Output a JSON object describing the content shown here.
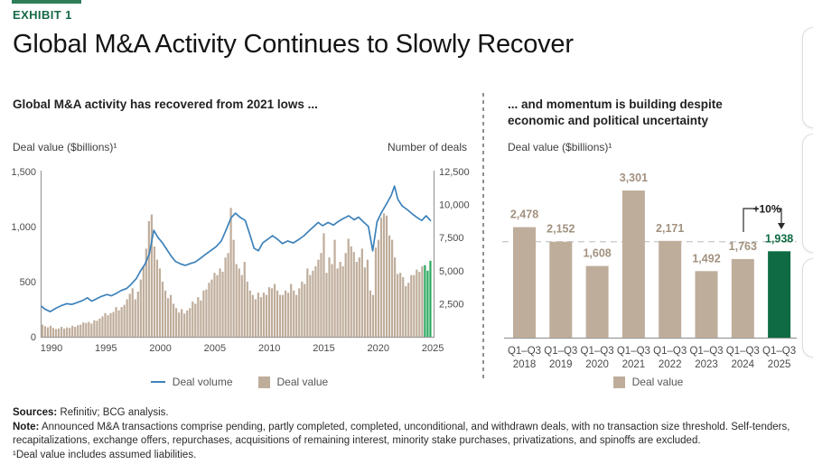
{
  "page": {
    "eyebrow": "EXHIBIT 1",
    "title": "Global M&A Activity Continues to Slowly Recover"
  },
  "colors": {
    "green_dark": "#0e6b43",
    "green_bright": "#29a95c",
    "tan_bar": "#bfad9b",
    "tan_label": "#a2917f",
    "line_blue": "#3d82ba",
    "axis_gray": "#9a9a9a",
    "tick_text": "#4a4a4a",
    "ref_dash": "#cccccc",
    "eyebrow_green": "#156a47"
  },
  "left_panel": {
    "heading": "Global M&A activity has recovered from 2021 lows ...",
    "y_left_caption": "Deal value ($billions)¹",
    "y_right_caption": "Number of deals",
    "legend": [
      {
        "label": "Deal volume",
        "swatch": "line"
      },
      {
        "label": "Deal value",
        "swatch": "square"
      }
    ]
  },
  "right_panel": {
    "heading1": "... and momentum is building despite",
    "heading2": "economic and political uncertainty",
    "y_caption": "Deal value ($billions)¹",
    "legend": [
      {
        "label": "Deal value",
        "swatch": "square"
      }
    ]
  },
  "footer": {
    "sources_label": "Sources:",
    "sources_text": " Refinitiv; BCG analysis.",
    "note_label": "Note:",
    "note_text": " Announced M&A transactions comprise pending, partly completed, completed, unconditional, and withdrawn deals, with no transaction size threshold. Self-tenders, recapitalizations, exchange offers, repurchases, acquisitions of remaining interest, minority stake purchases, privatizations, and spinoffs are excluded.",
    "footnote": "¹Deal value includes assumed liabilities."
  },
  "chart_data": [
    {
      "id": "global-ma-history",
      "type": "combo-bar-line",
      "title": "Global M&A activity has recovered from 2021 lows ...",
      "x_ticks": [
        1990,
        1995,
        2000,
        2005,
        2010,
        2015,
        2020,
        2025
      ],
      "y_left": {
        "label": "Deal value ($billions)¹",
        "tick_values": [
          0,
          500,
          1000,
          1500
        ],
        "ticks": [
          "0",
          "500",
          "1,000",
          "1,500"
        ],
        "range": [
          0,
          1500
        ]
      },
      "y_right": {
        "label": "Number of deals",
        "tick_values": [
          2500,
          5000,
          7500,
          10000,
          12500
        ],
        "ticks": [
          "2,500",
          "5,000",
          "7,500",
          "10,000",
          "12,500"
        ],
        "range": [
          0,
          12500
        ]
      },
      "bars": {
        "name": "Deal value",
        "unit": "$billions per quarter",
        "start_year": 1990,
        "period": "quarterly",
        "highlight_from_index": 140,
        "values": [
          110,
          95,
          85,
          100,
          80,
          70,
          75,
          90,
          75,
          85,
          80,
          100,
          90,
          105,
          110,
          130,
          125,
          135,
          120,
          150,
          145,
          165,
          185,
          215,
          195,
          215,
          225,
          270,
          240,
          270,
          290,
          340,
          390,
          440,
          340,
          410,
          520,
          640,
          800,
          1050,
          1110,
          820,
          700,
          620,
          500,
          420,
          350,
          380,
          300,
          260,
          220,
          250,
          210,
          240,
          260,
          320,
          300,
          360,
          330,
          420,
          430,
          490,
          520,
          580,
          560,
          620,
          590,
          720,
          760,
          1170,
          880,
          660,
          620,
          560,
          680,
          500,
          420,
          380,
          340,
          400,
          360,
          400,
          380,
          450,
          440,
          480,
          420,
          380,
          380,
          420,
          400,
          480,
          420,
          380,
          440,
          500,
          480,
          620,
          560,
          600,
          640,
          700,
          760,
          940,
          580,
          720,
          660,
          880,
          620,
          680,
          640,
          760,
          890,
          820,
          770,
          680,
          720,
          800,
          630,
          700,
          420,
          380,
          810,
          880,
          1080,
          1120,
          1100,
          920,
          880,
          720,
          570,
          580,
          540,
          460,
          490,
          560,
          560,
          610,
          590,
          640,
          650,
          600,
          690
        ]
      },
      "line": {
        "name": "Deal volume",
        "unit": "number of deals",
        "points": [
          [
            1990.0,
            2300
          ],
          [
            1990.3,
            2100
          ],
          [
            1990.8,
            1900
          ],
          [
            1991.3,
            2150
          ],
          [
            1991.8,
            2350
          ],
          [
            1992.3,
            2500
          ],
          [
            1992.8,
            2450
          ],
          [
            1993.3,
            2600
          ],
          [
            1993.8,
            2750
          ],
          [
            1994.2,
            2950
          ],
          [
            1994.6,
            2700
          ],
          [
            1995.0,
            2850
          ],
          [
            1995.5,
            3050
          ],
          [
            1996.0,
            3200
          ],
          [
            1996.4,
            3100
          ],
          [
            1996.9,
            3300
          ],
          [
            1997.3,
            3500
          ],
          [
            1997.8,
            3650
          ],
          [
            1998.2,
            3950
          ],
          [
            1998.7,
            4400
          ],
          [
            1999.1,
            5000
          ],
          [
            1999.5,
            5500
          ],
          [
            1999.9,
            6300
          ],
          [
            2000.3,
            8050
          ],
          [
            2000.7,
            7500
          ],
          [
            2001.1,
            7100
          ],
          [
            2001.5,
            6600
          ],
          [
            2001.9,
            6100
          ],
          [
            2002.3,
            5700
          ],
          [
            2002.8,
            5500
          ],
          [
            2003.2,
            5400
          ],
          [
            2003.7,
            5550
          ],
          [
            2004.1,
            5650
          ],
          [
            2004.6,
            5950
          ],
          [
            2005.0,
            6200
          ],
          [
            2005.5,
            6500
          ],
          [
            2006.0,
            6800
          ],
          [
            2006.5,
            7250
          ],
          [
            2007.0,
            8200
          ],
          [
            2007.4,
            9000
          ],
          [
            2007.8,
            9350
          ],
          [
            2008.2,
            9050
          ],
          [
            2008.7,
            8800
          ],
          [
            2009.1,
            7800
          ],
          [
            2009.5,
            6700
          ],
          [
            2009.9,
            6500
          ],
          [
            2010.3,
            7100
          ],
          [
            2010.8,
            7400
          ],
          [
            2011.2,
            7650
          ],
          [
            2011.7,
            7350
          ],
          [
            2012.1,
            7050
          ],
          [
            2012.6,
            7250
          ],
          [
            2013.1,
            7100
          ],
          [
            2013.6,
            7350
          ],
          [
            2014.1,
            7650
          ],
          [
            2014.6,
            8050
          ],
          [
            2015.0,
            8350
          ],
          [
            2015.4,
            8650
          ],
          [
            2015.8,
            8400
          ],
          [
            2016.3,
            8650
          ],
          [
            2016.8,
            8450
          ],
          [
            2017.2,
            8700
          ],
          [
            2017.7,
            8950
          ],
          [
            2018.2,
            9150
          ],
          [
            2018.7,
            8850
          ],
          [
            2019.1,
            9050
          ],
          [
            2019.6,
            8650
          ],
          [
            2020.0,
            8350
          ],
          [
            2020.4,
            6500
          ],
          [
            2020.8,
            8700
          ],
          [
            2021.2,
            9400
          ],
          [
            2021.7,
            10100
          ],
          [
            2022.1,
            10700
          ],
          [
            2022.4,
            11400
          ],
          [
            2022.7,
            10400
          ],
          [
            2023.1,
            9900
          ],
          [
            2023.6,
            9600
          ],
          [
            2024.1,
            9250
          ],
          [
            2024.5,
            9000
          ],
          [
            2024.9,
            8800
          ],
          [
            2025.3,
            9150
          ],
          [
            2025.7,
            8800
          ]
        ]
      }
    },
    {
      "id": "q1q3-deal-value",
      "type": "bar",
      "title": "... and momentum is building despite economic and political uncertainty",
      "ylabel": "Deal value ($billions)¹",
      "categories": [
        {
          "period": "Q1–Q3",
          "year": "2018"
        },
        {
          "period": "Q1–Q3",
          "year": "2019"
        },
        {
          "period": "Q1–Q3",
          "year": "2020"
        },
        {
          "period": "Q1–Q3",
          "year": "2021"
        },
        {
          "period": "Q1–Q3",
          "year": "2022"
        },
        {
          "period": "Q1–Q3",
          "year": "2023"
        },
        {
          "period": "Q1–Q3",
          "year": "2024"
        },
        {
          "period": "Q1–Q3",
          "year": "2025"
        }
      ],
      "values": [
        2478,
        2152,
        1608,
        3301,
        2171,
        1492,
        1763,
        1938
      ],
      "labels": [
        "2,478",
        "2,152",
        "1,608",
        "3,301",
        "2,171",
        "1,492",
        "1,763",
        "1,938"
      ],
      "highlight_index": 7,
      "reference_value": 2152,
      "annotation": "+10%",
      "ylim": [
        0,
        3600
      ],
      "legend": [
        "Deal value"
      ]
    }
  ]
}
